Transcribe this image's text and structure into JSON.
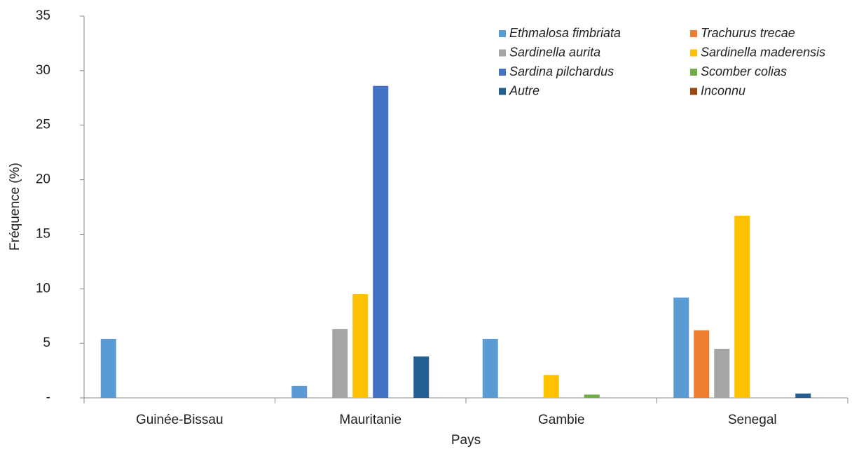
{
  "chart_data": {
    "type": "bar",
    "categories": [
      "Guinée-Bissau",
      "Mauritanie",
      "Gambie",
      "Senegal"
    ],
    "series": [
      {
        "name": "Ethmalosa fimbriata",
        "color": "#5b9bd5",
        "values": [
          5.4,
          1.1,
          5.4,
          9.2
        ]
      },
      {
        "name": "Trachurus trecae",
        "color": "#ed7d31",
        "values": [
          0,
          0,
          0,
          6.2
        ]
      },
      {
        "name": "Sardinella aurita",
        "color": "#a5a5a5",
        "values": [
          0,
          6.3,
          0,
          4.5
        ]
      },
      {
        "name": "Sardinella maderensis",
        "color": "#ffc000",
        "values": [
          0,
          9.5,
          2.1,
          16.7
        ]
      },
      {
        "name": "Sardina pilchardus",
        "color": "#4472c4",
        "values": [
          0,
          28.6,
          0,
          0
        ]
      },
      {
        "name": "Scomber colias",
        "color": "#70ad47",
        "values": [
          0,
          0,
          0.3,
          0
        ]
      },
      {
        "name": "Autre",
        "color": "#255e91",
        "values": [
          0,
          3.8,
          0,
          0.4
        ]
      },
      {
        "name": "Inconnu",
        "color": "#9e480e",
        "values": [
          0,
          0,
          0,
          0
        ]
      }
    ],
    "xlabel": "Pays",
    "ylabel": "Fréquence (%)",
    "ylim": [
      0,
      35
    ],
    "yticks": [
      {
        "value": 0,
        "label": "-"
      },
      5,
      10,
      15,
      20,
      25,
      30,
      35
    ],
    "legend": "top-right"
  }
}
